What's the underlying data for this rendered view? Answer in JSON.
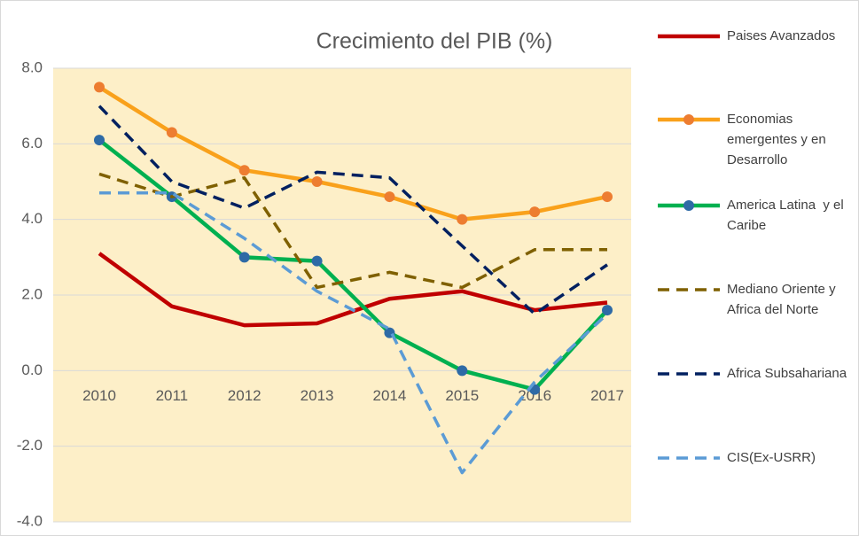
{
  "chart_data": {
    "type": "line",
    "title": "Crecimiento del PIB (%)",
    "categories": [
      "2010",
      "2011",
      "2012",
      "2013",
      "2014",
      "2015",
      "2016",
      "2017"
    ],
    "series": [
      {
        "name": "Paises Avanzados",
        "color": "#c00000",
        "dashed": false,
        "values": [
          3.1,
          1.7,
          1.2,
          1.25,
          1.9,
          2.1,
          1.6,
          1.8
        ]
      },
      {
        "name": "Economias emergentes y en Desarrollo",
        "color": "#f9a11b",
        "marker_color": "#ed7d31",
        "dashed": false,
        "values": [
          7.5,
          6.3,
          5.3,
          5.0,
          4.6,
          4.0,
          4.2,
          4.6
        ]
      },
      {
        "name": "America Latina  y el Caribe",
        "color": "#00b050",
        "marker_color": "#2e6aa6",
        "dashed": false,
        "values": [
          6.1,
          4.6,
          3.0,
          2.9,
          1.0,
          0.0,
          -0.5,
          1.6
        ]
      },
      {
        "name": "Mediano Oriente y Africa del Norte",
        "color": "#7f6000",
        "dashed": true,
        "values": [
          5.2,
          4.6,
          5.1,
          2.2,
          2.6,
          2.2,
          3.2,
          3.2
        ]
      },
      {
        "name": "Africa Subsahariana",
        "color": "#002060",
        "dashed": true,
        "values": [
          7.0,
          5.0,
          4.3,
          5.25,
          5.1,
          3.3,
          1.5,
          2.8
        ]
      },
      {
        "name": "CIS(Ex-USRR)",
        "color": "#5b9bd5",
        "dashed": true,
        "values": [
          4.7,
          4.7,
          3.5,
          2.1,
          1.1,
          -2.7,
          -0.3,
          1.5
        ]
      }
    ],
    "ylim": [
      -4,
      8
    ],
    "yticks": [
      {
        "value": -4,
        "label": "-4.0"
      },
      {
        "value": -2,
        "label": "-2.0"
      },
      {
        "value": 0,
        "label": "0.0"
      },
      {
        "value": 2,
        "label": "2.0"
      },
      {
        "value": 4,
        "label": "4.0"
      },
      {
        "value": 6,
        "label": "6.0"
      },
      {
        "value": 8,
        "label": "8.0"
      }
    ],
    "grid": true,
    "legend": "right"
  }
}
